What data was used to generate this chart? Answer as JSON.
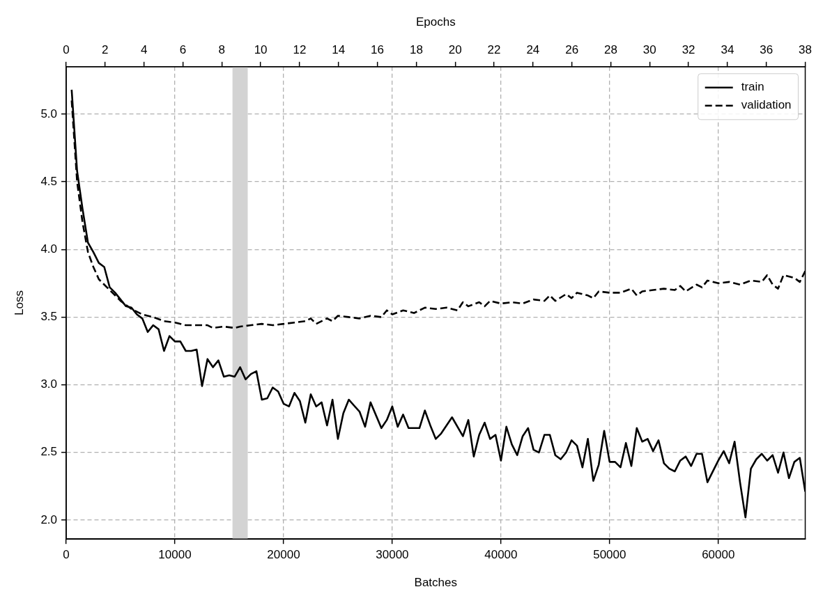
{
  "chart_data": {
    "type": "line",
    "xlabel": "Batches",
    "ylabel": "Loss",
    "x2label": "Epochs",
    "xlim": [
      0,
      68000
    ],
    "xticks": [
      0,
      10000,
      20000,
      30000,
      40000,
      50000,
      60000
    ],
    "x2lim": [
      0,
      38
    ],
    "x2ticks": [
      0,
      2,
      4,
      6,
      8,
      10,
      12,
      14,
      16,
      18,
      20,
      22,
      24,
      26,
      28,
      30,
      32,
      34,
      36,
      38
    ],
    "ylim": [
      1.86,
      5.35
    ],
    "yticks": [
      {
        "value": 2,
        "label": "2.0"
      },
      {
        "value": 2.5,
        "label": "2.5"
      },
      {
        "value": 3,
        "label": "3.0"
      },
      {
        "value": 3.5,
        "label": "3.5"
      },
      {
        "value": 4,
        "label": "4.0"
      },
      {
        "value": 4.5,
        "label": "4.5"
      },
      {
        "value": 5,
        "label": "5.0"
      }
    ],
    "grid": true,
    "legend": "top right",
    "bands": [
      {
        "axis": "x",
        "from": 15300,
        "to": 16700,
        "color": "#d3d3d3"
      }
    ],
    "series": [
      {
        "name": "train",
        "color": "#000000",
        "line_style": "solid",
        "x": [
          500,
          1000,
          1500,
          2000,
          2500,
          3000,
          3500,
          4000,
          4500,
          5000,
          5500,
          6000,
          6500,
          7000,
          7500,
          8000,
          8500,
          9000,
          9500,
          10000,
          10500,
          11000,
          11500,
          12000,
          12500,
          13000,
          13500,
          14000,
          14500,
          15000,
          15500,
          16000,
          16500,
          17000,
          17500,
          18000,
          18500,
          19000,
          19500,
          20000,
          20500,
          21000,
          21500,
          22000,
          22500,
          23000,
          23500,
          24000,
          24500,
          25000,
          25500,
          26000,
          27000,
          27500,
          28000,
          29000,
          29500,
          30000,
          30500,
          31000,
          31500,
          32500,
          33000,
          33500,
          34000,
          34500,
          35500,
          36500,
          37000,
          37500,
          38000,
          38500,
          39000,
          39500,
          40000,
          40500,
          41000,
          41500,
          42000,
          42500,
          43000,
          43500,
          44000,
          44500,
          45000,
          45500,
          46000,
          46500,
          47000,
          47500,
          48000,
          48500,
          49000,
          49500,
          50000,
          50500,
          51000,
          51500,
          52000,
          52500,
          53000,
          53500,
          54000,
          54500,
          55000,
          55500,
          56000,
          56500,
          57000,
          57500,
          58000,
          58500,
          59000,
          60000,
          60500,
          61000,
          61500,
          62000,
          62500,
          63000,
          63500,
          64000,
          64500,
          65000,
          65500,
          66000,
          66500,
          67000,
          67500,
          68000
        ],
        "values": [
          5.18,
          4.58,
          4.3,
          4.05,
          3.98,
          3.9,
          3.87,
          3.72,
          3.68,
          3.63,
          3.58,
          3.57,
          3.52,
          3.49,
          3.39,
          3.44,
          3.41,
          3.25,
          3.36,
          3.32,
          3.32,
          3.25,
          3.25,
          3.26,
          2.99,
          3.19,
          3.13,
          3.18,
          3.06,
          3.07,
          3.06,
          3.13,
          3.04,
          3.08,
          3.1,
          2.89,
          2.9,
          2.98,
          2.95,
          2.86,
          2.84,
          2.94,
          2.88,
          2.72,
          2.93,
          2.84,
          2.87,
          2.7,
          2.89,
          2.6,
          2.79,
          2.89,
          2.8,
          2.69,
          2.87,
          2.68,
          2.74,
          2.84,
          2.69,
          2.78,
          2.68,
          2.68,
          2.81,
          2.7,
          2.6,
          2.64,
          2.76,
          2.62,
          2.74,
          2.47,
          2.63,
          2.72,
          2.6,
          2.63,
          2.44,
          2.69,
          2.56,
          2.48,
          2.62,
          2.68,
          2.52,
          2.5,
          2.63,
          2.63,
          2.48,
          2.45,
          2.5,
          2.59,
          2.55,
          2.39,
          2.6,
          2.29,
          2.41,
          2.66,
          2.43,
          2.43,
          2.39,
          2.57,
          2.4,
          2.68,
          2.58,
          2.6,
          2.51,
          2.59,
          2.42,
          2.38,
          2.36,
          2.44,
          2.47,
          2.4,
          2.49,
          2.49,
          2.28,
          2.44,
          2.51,
          2.42,
          2.58,
          2.28,
          2.02,
          2.38,
          2.45,
          2.49,
          2.44,
          2.48,
          2.35,
          2.5,
          2.31,
          2.43,
          2.46,
          2.21
        ]
      },
      {
        "name": "validation",
        "color": "#000000",
        "line_style": "dashed",
        "x": [
          500,
          1000,
          1500,
          2000,
          2500,
          3000,
          4000,
          5000,
          6000,
          7000,
          8000,
          9000,
          10000,
          11000,
          12000,
          13000,
          13500,
          14500,
          15500,
          16000,
          17000,
          18000,
          19000,
          20000,
          21000,
          22000,
          22500,
          23000,
          24000,
          24500,
          25000,
          26000,
          27000,
          28000,
          29000,
          29500,
          30000,
          31000,
          32000,
          33000,
          34000,
          35000,
          36000,
          36500,
          37000,
          38000,
          38500,
          39000,
          40000,
          41000,
          42000,
          43000,
          44000,
          44500,
          45000,
          46000,
          46500,
          47000,
          48000,
          48500,
          49000,
          50000,
          51000,
          52000,
          52500,
          53000,
          54000,
          55000,
          56000,
          56500,
          57000,
          58000,
          58500,
          59000,
          60000,
          61000,
          62000,
          63000,
          64000,
          64500,
          65000,
          65500,
          66000,
          67000,
          67500,
          68000
        ],
        "values": [
          5.1,
          4.5,
          4.2,
          3.98,
          3.87,
          3.78,
          3.7,
          3.62,
          3.56,
          3.52,
          3.5,
          3.47,
          3.46,
          3.44,
          3.44,
          3.44,
          3.42,
          3.43,
          3.42,
          3.43,
          3.44,
          3.45,
          3.44,
          3.45,
          3.46,
          3.47,
          3.49,
          3.45,
          3.49,
          3.47,
          3.51,
          3.5,
          3.49,
          3.51,
          3.5,
          3.55,
          3.52,
          3.55,
          3.53,
          3.57,
          3.56,
          3.57,
          3.55,
          3.61,
          3.58,
          3.61,
          3.58,
          3.62,
          3.6,
          3.61,
          3.6,
          3.63,
          3.62,
          3.66,
          3.62,
          3.67,
          3.64,
          3.68,
          3.66,
          3.64,
          3.69,
          3.68,
          3.68,
          3.71,
          3.66,
          3.69,
          3.7,
          3.71,
          3.7,
          3.73,
          3.69,
          3.74,
          3.72,
          3.77,
          3.75,
          3.76,
          3.74,
          3.77,
          3.76,
          3.81,
          3.74,
          3.71,
          3.81,
          3.79,
          3.76,
          3.84
        ]
      }
    ]
  }
}
